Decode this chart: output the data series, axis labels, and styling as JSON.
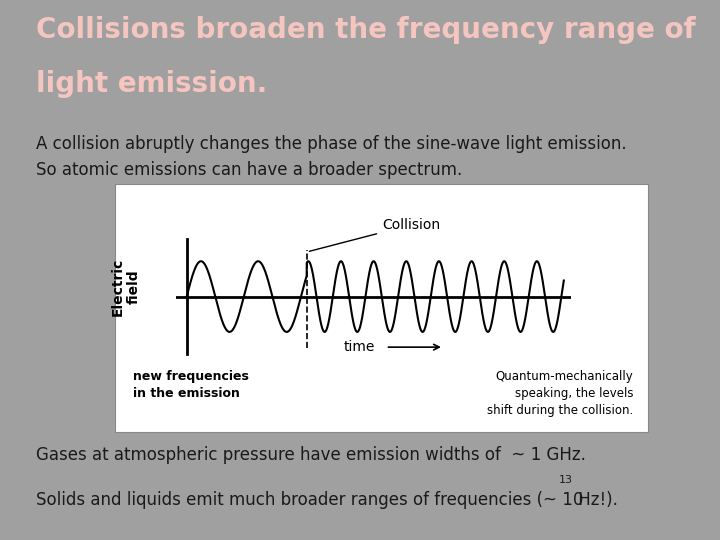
{
  "background_color": "#a0a0a0",
  "title_line1": "Collisions broaden the frequency range of",
  "title_line2": "light emission.",
  "title_color": "#f5c5c0",
  "title_fontsize": 20,
  "body_text1": "A collision abruptly changes the phase of the sine-wave light emission.\nSo atomic emissions can have a broader spectrum.",
  "body_fontsize": 12,
  "body_color": "#1a1a1a",
  "box_bg": "#ffffff",
  "ylabel": "Electric\nfield",
  "collision_label": "Collision",
  "new_freq_label": "new frequencies\nin the emission",
  "qm_label": "Quantum-mechanically\nspeaking, the levels\nshift during the collision.",
  "footer_line1": "Gases at atmospheric pressure have emission widths of  ~ 1 GHz.",
  "footer_line2": "Solids and liquids emit much broader ranges of frequencies (~ 10",
  "footer_exp": "13",
  "footer_end": " Hz!).",
  "footer_color": "#1a1a1a",
  "footer_fontsize": 12,
  "wave_color": "#000000",
  "axis_color": "#000000",
  "dashed_color": "#000000",
  "freq_before": 0.6,
  "freq_after": 1.05,
  "amp_before": 0.65,
  "amp_after": 0.65,
  "collision_t": 3.5
}
